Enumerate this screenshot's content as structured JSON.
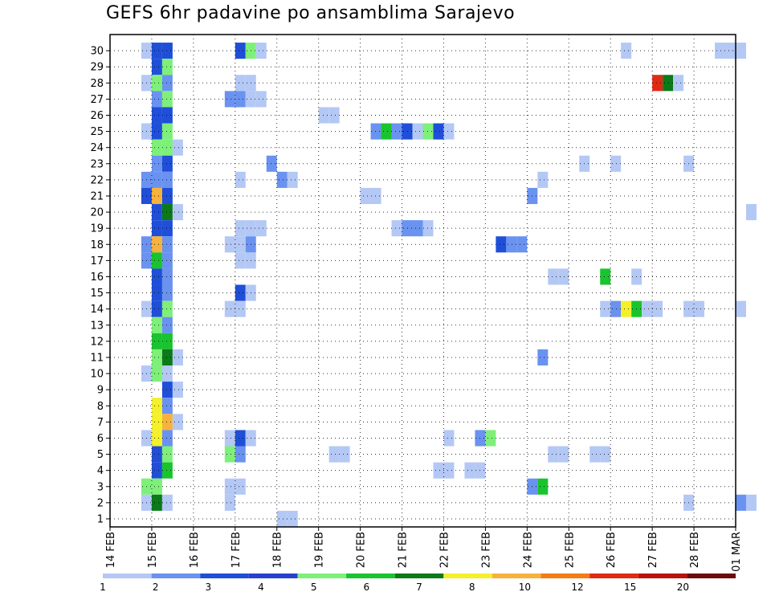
{
  "chart_data": {
    "type": "heatmap",
    "title": "GEFS 6hr padavine po ansamblima Sarajevo",
    "xlabel": "",
    "ylabel": "",
    "x_ticks": [
      "14 FEB",
      "15 FEB",
      "16 FEB",
      "17 FEB",
      "18 FEB",
      "19 FEB",
      "20 FEB",
      "21 FEB",
      "22 FEB",
      "23 FEB",
      "24 FEB",
      "25 FEB",
      "26 FEB",
      "27 FEB",
      "28 FEB",
      "01 MAR"
    ],
    "y_ticks": [
      "1",
      "2",
      "3",
      "4",
      "5",
      "6",
      "7",
      "8",
      "9",
      "10",
      "11",
      "12",
      "13",
      "14",
      "15",
      "16",
      "17",
      "18",
      "19",
      "20",
      "21",
      "22",
      "23",
      "24",
      "25",
      "26",
      "27",
      "28",
      "29",
      "30"
    ],
    "xlim_days": [
      14,
      29
    ],
    "time_step_hours": 6,
    "grid": true,
    "legend": {
      "placement": "bottom",
      "labels": [
        "1",
        "2",
        "3",
        "4",
        "5",
        "6",
        "7",
        "8",
        "10",
        "12",
        "15",
        "20"
      ],
      "colors": [
        "#b4c8f5",
        "#6a92f0",
        "#1f4fd8",
        "#2b3fcf",
        "#7ef07a",
        "#19c42e",
        "#0b7a18",
        "#f4f02a",
        "#f6b23c",
        "#f47b16",
        "#e02a14",
        "#b8140c",
        "#6e0a0a"
      ]
    },
    "palette": [
      "#b4c8f5",
      "#6a92f0",
      "#1f4fd8",
      "#7ef07a",
      "#19c42e",
      "#0b7a18",
      "#f4f02a",
      "#f6b23c",
      "#f47b16",
      "#e02a14",
      "#b8140c",
      "#6e0a0a"
    ],
    "cells_note": "each cell: [member, day (FEB, fractional, 6-hour steps), color class index into palette]",
    "cells": [
      [
        30,
        14.75,
        0
      ],
      [
        30,
        15.0,
        2
      ],
      [
        30,
        15.25,
        2
      ],
      [
        30,
        17.0,
        2
      ],
      [
        30,
        17.25,
        3
      ],
      [
        30,
        17.5,
        0
      ],
      [
        30,
        26.25,
        0
      ],
      [
        30,
        28.5,
        0
      ],
      [
        30,
        28.75,
        0
      ],
      [
        30,
        29.0,
        0
      ],
      [
        29,
        15.0,
        2
      ],
      [
        29,
        15.25,
        3
      ],
      [
        28,
        14.75,
        0
      ],
      [
        28,
        15.0,
        3
      ],
      [
        28,
        15.25,
        1
      ],
      [
        28,
        17.0,
        0
      ],
      [
        28,
        17.25,
        0
      ],
      [
        28,
        27.0,
        9
      ],
      [
        28,
        27.25,
        5
      ],
      [
        28,
        27.5,
        0
      ],
      [
        27,
        15.0,
        1
      ],
      [
        27,
        15.25,
        3
      ],
      [
        27,
        16.75,
        1
      ],
      [
        27,
        17.0,
        1
      ],
      [
        27,
        17.25,
        0
      ],
      [
        27,
        17.5,
        0
      ],
      [
        26,
        15.0,
        2
      ],
      [
        26,
        15.25,
        2
      ],
      [
        26,
        19.0,
        0
      ],
      [
        26,
        19.25,
        0
      ],
      [
        25,
        14.75,
        0
      ],
      [
        25,
        15.0,
        2
      ],
      [
        25,
        15.25,
        3
      ],
      [
        25,
        20.25,
        1
      ],
      [
        25,
        20.5,
        4
      ],
      [
        25,
        20.75,
        1
      ],
      [
        25,
        21.0,
        2
      ],
      [
        25,
        21.25,
        0
      ],
      [
        25,
        21.5,
        3
      ],
      [
        25,
        21.75,
        2
      ],
      [
        25,
        22.0,
        0
      ],
      [
        24,
        15.0,
        3
      ],
      [
        24,
        15.25,
        3
      ],
      [
        24,
        15.5,
        0
      ],
      [
        23,
        15.0,
        1
      ],
      [
        23,
        15.25,
        2
      ],
      [
        23,
        17.75,
        1
      ],
      [
        23,
        25.25,
        0
      ],
      [
        23,
        26.0,
        0
      ],
      [
        23,
        27.75,
        0
      ],
      [
        22,
        14.75,
        1
      ],
      [
        22,
        15.0,
        1
      ],
      [
        22,
        15.25,
        1
      ],
      [
        22,
        17.0,
        0
      ],
      [
        22,
        18.0,
        1
      ],
      [
        22,
        18.25,
        0
      ],
      [
        22,
        24.25,
        0
      ],
      [
        21,
        14.75,
        2
      ],
      [
        21,
        15.0,
        7
      ],
      [
        21,
        15.25,
        2
      ],
      [
        21,
        20.0,
        0
      ],
      [
        21,
        20.25,
        0
      ],
      [
        21,
        24.0,
        1
      ],
      [
        20,
        15.0,
        2
      ],
      [
        20,
        15.25,
        5
      ],
      [
        20,
        15.5,
        0
      ],
      [
        20,
        29.25,
        0
      ],
      [
        19,
        15.0,
        2
      ],
      [
        19,
        15.25,
        2
      ],
      [
        19,
        17.0,
        0
      ],
      [
        19,
        17.25,
        0
      ],
      [
        19,
        17.5,
        0
      ],
      [
        19,
        20.75,
        0
      ],
      [
        19,
        21.0,
        1
      ],
      [
        19,
        21.25,
        1
      ],
      [
        19,
        21.5,
        0
      ],
      [
        18,
        14.75,
        1
      ],
      [
        18,
        15.0,
        7
      ],
      [
        18,
        15.25,
        1
      ],
      [
        18,
        16.75,
        0
      ],
      [
        18,
        17.0,
        0
      ],
      [
        18,
        17.25,
        1
      ],
      [
        18,
        23.25,
        2
      ],
      [
        18,
        23.5,
        1
      ],
      [
        18,
        23.75,
        1
      ],
      [
        17,
        14.75,
        1
      ],
      [
        17,
        15.0,
        4
      ],
      [
        17,
        15.25,
        1
      ],
      [
        17,
        17.0,
        0
      ],
      [
        17,
        17.25,
        0
      ],
      [
        16,
        15.0,
        2
      ],
      [
        16,
        15.25,
        1
      ],
      [
        16,
        24.5,
        0
      ],
      [
        16,
        24.75,
        0
      ],
      [
        16,
        25.75,
        4
      ],
      [
        16,
        26.5,
        0
      ],
      [
        15,
        15.0,
        2
      ],
      [
        15,
        15.25,
        1
      ],
      [
        15,
        17.0,
        2
      ],
      [
        15,
        17.25,
        0
      ],
      [
        14,
        14.75,
        0
      ],
      [
        14,
        15.0,
        2
      ],
      [
        14,
        15.25,
        3
      ],
      [
        14,
        16.75,
        0
      ],
      [
        14,
        17.0,
        0
      ],
      [
        14,
        25.75,
        0
      ],
      [
        14,
        26.0,
        1
      ],
      [
        14,
        26.25,
        6
      ],
      [
        14,
        26.5,
        4
      ],
      [
        14,
        26.75,
        0
      ],
      [
        14,
        27.0,
        0
      ],
      [
        14,
        27.75,
        0
      ],
      [
        14,
        28.0,
        0
      ],
      [
        14,
        29.0,
        0
      ],
      [
        13,
        15.0,
        3
      ],
      [
        13,
        15.25,
        1
      ],
      [
        12,
        15.0,
        4
      ],
      [
        12,
        15.25,
        4
      ],
      [
        11,
        15.0,
        3
      ],
      [
        11,
        15.25,
        5
      ],
      [
        11,
        15.5,
        0
      ],
      [
        11,
        24.25,
        1
      ],
      [
        10,
        14.75,
        0
      ],
      [
        10,
        15.0,
        3
      ],
      [
        10,
        15.25,
        0
      ],
      [
        9,
        15.25,
        2
      ],
      [
        9,
        15.5,
        0
      ],
      [
        8,
        15.0,
        6
      ],
      [
        8,
        15.25,
        1
      ],
      [
        7,
        15.0,
        6
      ],
      [
        7,
        15.25,
        7
      ],
      [
        7,
        15.5,
        0
      ],
      [
        6,
        14.75,
        0
      ],
      [
        6,
        15.0,
        6
      ],
      [
        6,
        15.25,
        1
      ],
      [
        6,
        16.75,
        0
      ],
      [
        6,
        17.0,
        2
      ],
      [
        6,
        17.25,
        0
      ],
      [
        6,
        22.0,
        0
      ],
      [
        6,
        22.75,
        1
      ],
      [
        6,
        23.0,
        3
      ],
      [
        5,
        15.0,
        2
      ],
      [
        5,
        15.25,
        3
      ],
      [
        5,
        16.75,
        3
      ],
      [
        5,
        17.0,
        1
      ],
      [
        5,
        19.25,
        0
      ],
      [
        5,
        19.5,
        0
      ],
      [
        5,
        24.5,
        0
      ],
      [
        5,
        24.75,
        0
      ],
      [
        5,
        25.5,
        0
      ],
      [
        5,
        25.75,
        0
      ],
      [
        4,
        15.0,
        2
      ],
      [
        4,
        15.25,
        4
      ],
      [
        4,
        21.75,
        0
      ],
      [
        4,
        22.0,
        0
      ],
      [
        4,
        22.5,
        0
      ],
      [
        4,
        22.75,
        0
      ],
      [
        3,
        14.75,
        3
      ],
      [
        3,
        15.0,
        3
      ],
      [
        3,
        16.75,
        0
      ],
      [
        3,
        17.0,
        0
      ],
      [
        3,
        24.0,
        1
      ],
      [
        3,
        24.25,
        4
      ],
      [
        2,
        14.75,
        0
      ],
      [
        2,
        15.0,
        5
      ],
      [
        2,
        15.25,
        0
      ],
      [
        2,
        16.75,
        0
      ],
      [
        2,
        27.75,
        0
      ],
      [
        2,
        29.0,
        1
      ],
      [
        2,
        29.25,
        0
      ],
      [
        1,
        18.0,
        0
      ],
      [
        1,
        18.25,
        0
      ]
    ]
  }
}
